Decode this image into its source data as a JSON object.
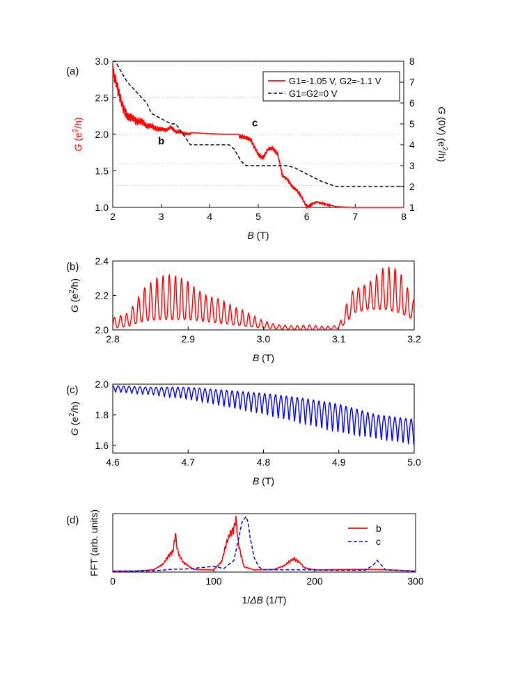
{
  "chart_data": [
    {
      "panel": "(a)",
      "type": "line",
      "xlabel": "B (T)",
      "ylabel": "G (e2/h)",
      "ylabel_right": "G (0V) (e2/h)",
      "xlim": [
        2,
        8
      ],
      "ylim": [
        1.0,
        3.0
      ],
      "ylim_right": [
        1,
        8
      ],
      "x_ticks": [
        2,
        3,
        4,
        5,
        6,
        7,
        8
      ],
      "y_ticks": [
        1.0,
        1.5,
        2.0,
        2.5,
        3.0
      ],
      "y_ticks_right": [
        1,
        2,
        3,
        4,
        5,
        6,
        7,
        8
      ],
      "legend_position": "top-right",
      "annotations": [
        {
          "text": "b",
          "x": 3.0,
          "y": 1.86
        },
        {
          "text": "c",
          "x": 4.93,
          "y": 2.11
        }
      ],
      "series": [
        {
          "name": "G1=-1.05 V, G2=-1.1 V",
          "color": "#ff0000",
          "style": "solid",
          "axis": "left",
          "x": [
            2.0,
            2.1,
            2.2,
            2.3,
            2.4,
            2.5,
            2.6,
            2.7,
            2.8,
            2.9,
            3.0,
            3.1,
            3.2,
            3.3,
            3.4,
            3.5,
            3.7,
            4.0,
            4.3,
            4.6,
            4.75,
            4.85,
            4.92,
            5.0,
            5.1,
            5.2,
            5.3,
            5.4,
            5.5,
            5.6,
            5.7,
            5.8,
            5.9,
            6.0,
            6.2,
            6.4,
            6.6,
            7.0,
            7.5,
            8.0
          ],
          "y": [
            2.95,
            2.7,
            2.45,
            2.3,
            2.28,
            2.22,
            2.22,
            2.15,
            2.15,
            2.1,
            2.1,
            2.08,
            2.12,
            2.05,
            2.05,
            2.02,
            2.02,
            2.01,
            2.0,
            2.0,
            1.98,
            1.95,
            1.85,
            1.75,
            1.7,
            1.82,
            1.83,
            1.75,
            1.45,
            1.4,
            1.3,
            1.25,
            1.15,
            1.02,
            1.08,
            1.05,
            1.01,
            1.0,
            1.0,
            1.0
          ]
        },
        {
          "name": "G1=G2=0 V",
          "color": "#000000",
          "style": "dashed",
          "axis": "right",
          "x": [
            2.0,
            2.05,
            2.15,
            2.3,
            2.5,
            2.7,
            2.8,
            3.2,
            3.3,
            3.45,
            3.6,
            4.4,
            4.5,
            4.65,
            4.75,
            5.6,
            5.75,
            6.0,
            6.3,
            6.6,
            8.0
          ],
          "y": [
            8.0,
            8.0,
            7.6,
            7.0,
            6.5,
            6.0,
            5.5,
            5.0,
            5.0,
            4.5,
            4.0,
            4.0,
            3.8,
            3.2,
            3.0,
            3.0,
            2.9,
            2.6,
            2.25,
            2.0,
            2.0
          ]
        }
      ]
    },
    {
      "panel": "(b)",
      "type": "line",
      "xlabel": "B (T)",
      "ylabel": "G (e2/h)",
      "xlim": [
        2.8,
        3.2
      ],
      "ylim": [
        2.0,
        2.4
      ],
      "x_ticks": [
        2.8,
        2.9,
        3.0,
        3.1,
        3.2
      ],
      "y_ticks": [
        2.0,
        2.2,
        2.4
      ],
      "series": [
        {
          "name": "",
          "color": "#ff0000",
          "style": "solid",
          "oscillation_period": 0.0081,
          "x": [
            2.8,
            2.82,
            2.84,
            2.86,
            2.88,
            2.9,
            2.92,
            2.94,
            2.96,
            2.98,
            3.0,
            3.02,
            3.04,
            3.06,
            3.08,
            3.1,
            3.11,
            3.12,
            3.14,
            3.16,
            3.18,
            3.2
          ],
          "y_base": [
            2.01,
            2.02,
            2.05,
            2.06,
            2.06,
            2.06,
            2.05,
            2.04,
            2.03,
            2.02,
            2.01,
            2.005,
            2.003,
            2.002,
            2.002,
            2.01,
            2.04,
            2.1,
            2.12,
            2.12,
            2.1,
            2.06
          ],
          "y_peak": [
            2.08,
            2.13,
            2.29,
            2.32,
            2.32,
            2.32,
            2.28,
            2.22,
            2.14,
            2.1,
            2.06,
            2.04,
            2.03,
            2.03,
            2.02,
            2.03,
            2.18,
            2.3,
            2.32,
            2.38,
            2.35,
            2.18
          ]
        }
      ]
    },
    {
      "panel": "(c)",
      "type": "line",
      "xlabel": "B (T)",
      "ylabel": "G (e2/h)",
      "xlim": [
        4.6,
        5.0
      ],
      "ylim": [
        1.55,
        2.0
      ],
      "x_ticks": [
        4.6,
        4.7,
        4.8,
        4.9,
        5.0
      ],
      "y_ticks": [
        1.6,
        1.8,
        2.0
      ],
      "series": [
        {
          "name": "",
          "color": "#0000ee",
          "style": "solid",
          "oscillation_period": 0.0072,
          "x": [
            4.6,
            4.65,
            4.7,
            4.75,
            4.8,
            4.85,
            4.9,
            4.95,
            5.0
          ],
          "y_top": [
            1.99,
            1.98,
            1.98,
            1.96,
            1.94,
            1.91,
            1.87,
            1.8,
            1.77
          ],
          "y_bottom": [
            1.95,
            1.93,
            1.9,
            1.85,
            1.8,
            1.74,
            1.68,
            1.64,
            1.6
          ]
        }
      ]
    },
    {
      "panel": "(d)",
      "type": "line",
      "xlabel": "1/ΔB (1/T)",
      "ylabel": "FFT (arb. units)",
      "xlim": [
        0,
        300
      ],
      "ylim": [
        0,
        1
      ],
      "x_ticks": [
        0,
        100,
        200,
        300
      ],
      "legend_position": "top-right",
      "series": [
        {
          "name": "b",
          "color": "#ff0000",
          "style": "solid",
          "x": [
            0,
            20,
            40,
            50,
            55,
            58,
            60,
            62,
            64,
            66,
            70,
            80,
            100,
            108,
            112,
            116,
            118,
            120,
            122,
            124,
            126,
            130,
            140,
            160,
            170,
            175,
            180,
            185,
            190,
            200,
            240,
            260,
            300
          ],
          "y": [
            0.02,
            0.02,
            0.04,
            0.15,
            0.3,
            0.35,
            0.4,
            0.72,
            0.42,
            0.3,
            0.18,
            0.05,
            0.04,
            0.2,
            0.5,
            0.7,
            0.75,
            0.8,
            0.98,
            0.6,
            0.4,
            0.1,
            0.04,
            0.05,
            0.12,
            0.2,
            0.25,
            0.18,
            0.08,
            0.04,
            0.05,
            0.05,
            0.02
          ]
        },
        {
          "name": "c",
          "color": "#0000ee",
          "style": "dashed",
          "x": [
            0,
            40,
            60,
            70,
            90,
            100,
            110,
            120,
            125,
            128,
            130,
            132,
            134,
            136,
            140,
            145,
            150,
            170,
            190,
            220,
            250,
            258,
            262,
            266,
            270,
            300
          ],
          "y": [
            0.01,
            0.02,
            0.05,
            0.05,
            0.08,
            0.1,
            0.06,
            0.2,
            0.6,
            0.85,
            0.9,
            0.95,
            0.85,
            0.6,
            0.25,
            0.08,
            0.04,
            0.04,
            0.04,
            0.03,
            0.03,
            0.12,
            0.2,
            0.12,
            0.04,
            0.01
          ]
        }
      ]
    }
  ]
}
